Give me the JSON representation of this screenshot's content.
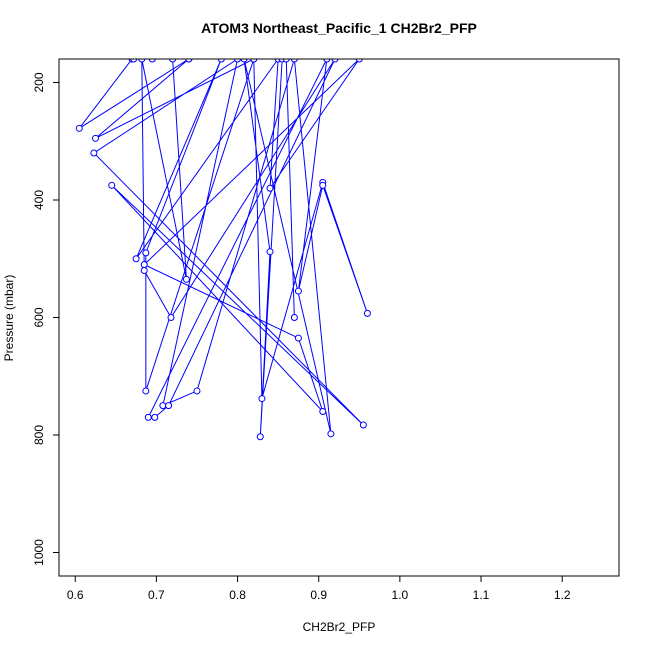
{
  "chart_data": {
    "type": "line",
    "title": "ATOM3 Northeast_Pacific_1 CH2Br2_PFP",
    "xlabel": "CH2Br2_PFP",
    "ylabel": "Pressure (mbar)",
    "xlim": [
      0.58,
      1.27
    ],
    "ylim": [
      1040,
      160
    ],
    "y_reversed": true,
    "grid": false,
    "legend": "none",
    "color": "#0000ff",
    "x_ticks": [
      0.6,
      0.7,
      0.8,
      0.9,
      1.0,
      1.1,
      1.2
    ],
    "x_tick_labels": [
      "0.6",
      "0.7",
      "0.8",
      "0.9",
      "1.0",
      "1.1",
      "1.2"
    ],
    "y_ticks": [
      200,
      400,
      600,
      800,
      1000
    ],
    "y_tick_labels": [
      "200",
      "400",
      "600",
      "800",
      "1000"
    ],
    "series": [
      {
        "x": [
          0.67,
          0.605,
          0.74,
          0.74,
          0.625,
          0.82,
          0.687,
          0.687,
          0.78,
          0.675,
          0.85,
          0.84,
          0.95,
          0.685,
          0.875,
          0.905,
          0.645,
          0.955,
          0.623,
          0.8,
          0.708,
          0.75,
          0.87,
          0.915,
          0.808,
          0.84,
          0.828,
          0.855,
          0.82,
          0.83,
          0.905,
          0.96,
          0.905,
          0.875,
          0.91,
          0.69,
          0.698,
          0.715,
          0.92,
          0.718,
          0.685,
          0.682,
          0.737,
          0.72,
          0.695,
          0.672,
          0.86,
          0.87
        ],
        "y": [
          160,
          278,
          160,
          160,
          295,
          160,
          725,
          490,
          160,
          500,
          160,
          380,
          160,
          510,
          635,
          760,
          375,
          783,
          320,
          160,
          750,
          725,
          160,
          798,
          160,
          488,
          803,
          160,
          160,
          738,
          370,
          593,
          375,
          555,
          160,
          770,
          770,
          750,
          160,
          600,
          520,
          160,
          535,
          160,
          160,
          160,
          160,
          600
        ]
      }
    ]
  }
}
